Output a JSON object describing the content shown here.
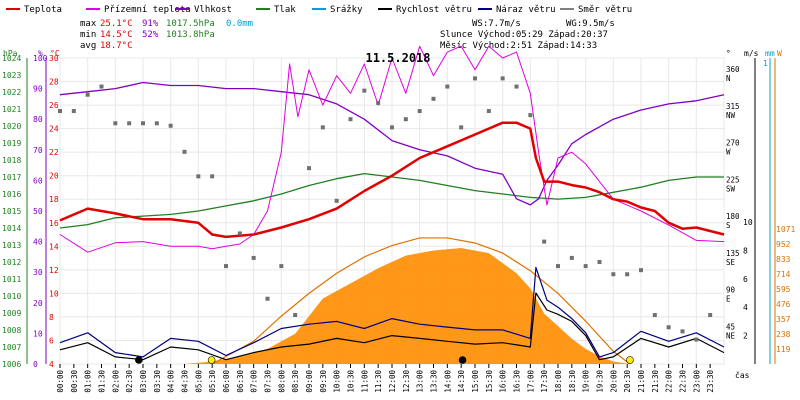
{
  "chart_data": {
    "type": "line",
    "title": "11.5.2018",
    "legend": [
      {
        "label": "Teplota",
        "color": "#e00000"
      },
      {
        "label": "Přízemní teplota",
        "color": "#e000e0"
      },
      {
        "label": "Vlhkost",
        "color": "#8000c0"
      },
      {
        "label": "Tlak",
        "color": "#208020"
      },
      {
        "label": "Srážky",
        "color": "#00a0d0"
      },
      {
        "label": "Rychlost větru",
        "color": "#000000"
      },
      {
        "label": "Náraz větru",
        "color": "#000080"
      },
      {
        "label": "Směr větru",
        "color": "#808080"
      }
    ],
    "stats": {
      "max": {
        "label": "max",
        "temp": "25.1°C",
        "hum": "91%",
        "press": "1017.5hPa",
        "rain": "0.0mm"
      },
      "min": {
        "label": "min",
        "temp": "14.5°C",
        "hum": "52%",
        "press": "1013.8hPa"
      },
      "avg": {
        "label": "avg",
        "temp": "18.7°C"
      }
    },
    "info": {
      "ws": "WS:7.7m/s",
      "wg": "WG:9.5m/s",
      "sun": "Slunce Východ:05:29  Západ:20:37",
      "moon": "Měsíc  Východ:2:51   Západ:14:33"
    },
    "axes": {
      "hpa_unit": "hPa",
      "hpa_ticks": [
        "1024",
        "1023",
        "1022",
        "1021",
        "1020",
        "1019",
        "1018",
        "1017",
        "1016",
        "1015",
        "1014",
        "1013",
        "1012",
        "1011",
        "1010",
        "1009",
        "1008",
        "1007",
        "1006"
      ],
      "pct_unit": "%",
      "pct_ticks": [
        "100",
        "90",
        "80",
        "70",
        "60",
        "50",
        "40",
        "30",
        "20",
        "10",
        "0"
      ],
      "temp_unit": "°C",
      "temp_ticks": [
        "30",
        "28",
        "26",
        "24",
        "22",
        "20",
        "18",
        "16",
        "14",
        "12",
        "10",
        "8",
        "6",
        "4"
      ],
      "deg_unit": "°",
      "dir_ticks": [
        {
          "deg": "360",
          "lbl": "N"
        },
        {
          "deg": "315",
          "lbl": "NW"
        },
        {
          "deg": "270",
          "lbl": "W"
        },
        {
          "deg": "225",
          "lbl": "SW"
        },
        {
          "deg": "180",
          "lbl": "S"
        },
        {
          "deg": "135",
          "lbl": "SE"
        },
        {
          "deg": "90",
          "lbl": "E"
        },
        {
          "deg": "45",
          "lbl": "NE"
        }
      ],
      "ms_unit": "m/s",
      "ms_ticks": [
        "10",
        "8",
        "6",
        "4",
        "2"
      ],
      "mm_unit": "mm",
      "mm_top": "1",
      "w_unit": "W",
      "w_ticks": [
        "1071",
        "952",
        "833",
        "714",
        "595",
        "476",
        "357",
        "238",
        "119"
      ],
      "time_unit": "čas",
      "x_ticks": [
        "00:00",
        "00:30",
        "01:00",
        "01:30",
        "02:00",
        "02:30",
        "03:00",
        "03:30",
        "04:00",
        "04:30",
        "05:00",
        "05:30",
        "06:00",
        "06:30",
        "07:00",
        "07:30",
        "08:00",
        "08:30",
        "09:00",
        "09:30",
        "10:00",
        "10:30",
        "11:00",
        "11:30",
        "12:00",
        "12:30",
        "13:00",
        "13:30",
        "14:00",
        "14:30",
        "15:00",
        "15:30",
        "16:00",
        "16:30",
        "17:00",
        "17:30",
        "18:00",
        "18:30",
        "19:00",
        "19:30",
        "20:00",
        "20:30",
        "21:00",
        "21:30",
        "22:00",
        "22:30",
        "23:00",
        "23:30"
      ]
    },
    "series": {
      "teplota": {
        "t": [
          0,
          1,
          2,
          3,
          4,
          5,
          5.5,
          6,
          7,
          8,
          9,
          10,
          11,
          12,
          13,
          14,
          15,
          16,
          16.5,
          17,
          17.2,
          17.5,
          18,
          18.5,
          19,
          19.5,
          20,
          20.5,
          21,
          21.5,
          22,
          22.5,
          23,
          24
        ],
        "y": [
          16.2,
          17.2,
          16.8,
          16.3,
          16.3,
          16.0,
          15.0,
          14.8,
          15.0,
          15.6,
          16.3,
          17.2,
          18.7,
          20.0,
          21.5,
          22.5,
          23.5,
          24.5,
          24.5,
          24.0,
          21.5,
          19.5,
          19.5,
          19.2,
          19.0,
          18.6,
          18.0,
          17.8,
          17.3,
          17.0,
          16.0,
          15.5,
          15.6,
          15.0
        ]
      },
      "prizemni": {
        "t": [
          0,
          1,
          2,
          3,
          4,
          5,
          5.5,
          6,
          6.5,
          7,
          7.5,
          8,
          8.3,
          8.6,
          9,
          9.5,
          10,
          10.5,
          11,
          11.5,
          12,
          12.5,
          13,
          13.5,
          14,
          14.5,
          15,
          15.5,
          16,
          16.5,
          17,
          17.3,
          17.6,
          18,
          18.5,
          19,
          20,
          21,
          22,
          23,
          24
        ],
        "y": [
          15.0,
          13.5,
          14.3,
          14.4,
          14.0,
          14.0,
          13.8,
          14.0,
          14.2,
          15.0,
          17.0,
          22.0,
          29.5,
          25.0,
          29.0,
          26.0,
          28.5,
          27.0,
          29.5,
          26.0,
          30.0,
          27.0,
          31.0,
          28.5,
          30.5,
          31.0,
          29.0,
          31.0,
          30.0,
          30.5,
          27.0,
          22.0,
          17.5,
          21.5,
          22.0,
          21.0,
          18.0,
          17.0,
          15.8,
          14.5,
          14.4
        ]
      },
      "vlhkost": {
        "t": [
          0,
          1,
          2,
          3,
          4,
          5,
          6,
          7,
          8,
          9,
          10,
          11,
          12,
          13,
          14,
          15,
          16,
          16.5,
          17,
          17.3,
          17.6,
          18,
          18.5,
          19,
          20,
          21,
          22,
          23,
          24
        ],
        "y": [
          88,
          89,
          90,
          92,
          91,
          91,
          90,
          90,
          89,
          88,
          85,
          80,
          73,
          70,
          68,
          64,
          62,
          54,
          52,
          54,
          60,
          65,
          72,
          75,
          80,
          83,
          85,
          86,
          88
        ]
      },
      "tlak": {
        "t": [
          0,
          1,
          2,
          3,
          4,
          5,
          6,
          7,
          8,
          9,
          10,
          11,
          12,
          13,
          14,
          15,
          16,
          17,
          18,
          19,
          20,
          21,
          22,
          23,
          24
        ],
        "y": [
          1014.0,
          1014.2,
          1014.6,
          1014.7,
          1014.8,
          1015.0,
          1015.3,
          1015.6,
          1016.0,
          1016.5,
          1016.9,
          1017.2,
          1017.0,
          1016.8,
          1016.5,
          1016.2,
          1016.0,
          1015.8,
          1015.7,
          1015.8,
          1016.1,
          1016.4,
          1016.8,
          1017.0,
          1017.0
        ]
      },
      "radiace": {
        "t": [
          4.5,
          5.5,
          6.5,
          7.5,
          8.5,
          9.5,
          10.5,
          11.5,
          12.5,
          13.5,
          14.5,
          15.5,
          16.5,
          17,
          17.5,
          18,
          18.5,
          19,
          19.5,
          20,
          20.6
        ],
        "y": [
          0,
          20,
          60,
          120,
          240,
          520,
          640,
          760,
          860,
          900,
          920,
          880,
          720,
          600,
          400,
          300,
          200,
          120,
          60,
          20,
          0
        ]
      },
      "slunce_teor": {
        "t": [
          5.5,
          7,
          8,
          9,
          10,
          11,
          12,
          13,
          14,
          15,
          16,
          17,
          18,
          19,
          20,
          20.6
        ],
        "y": [
          0,
          180,
          380,
          560,
          720,
          850,
          940,
          1000,
          1000,
          960,
          880,
          740,
          560,
          340,
          100,
          0
        ]
      },
      "vitr": {
        "t": [
          0,
          1,
          2,
          3,
          4,
          5,
          6,
          7,
          8,
          9,
          10,
          11,
          12,
          13,
          14,
          15,
          16,
          17,
          17.2,
          17.6,
          18,
          18.5,
          19,
          19.5,
          20,
          21,
          22,
          23,
          24
        ],
        "y": [
          1.0,
          1.5,
          0.5,
          0.3,
          1.2,
          1.0,
          0.3,
          0.8,
          1.2,
          1.4,
          1.8,
          1.5,
          2.0,
          1.8,
          1.6,
          1.4,
          1.5,
          1.2,
          5.0,
          3.8,
          3.5,
          3.0,
          2.0,
          0.3,
          0.5,
          1.8,
          1.2,
          1.8,
          0.8
        ]
      },
      "naraz": {
        "t": [
          0,
          1,
          2,
          3,
          4,
          5,
          6,
          7,
          8,
          9,
          10,
          11,
          12,
          13,
          14,
          15,
          16,
          17,
          17.2,
          17.6,
          18,
          18.5,
          19,
          19.5,
          20,
          21,
          22,
          23,
          24
        ],
        "y": [
          1.5,
          2.2,
          0.8,
          0.5,
          1.8,
          1.6,
          0.6,
          1.5,
          2.5,
          2.8,
          3.0,
          2.5,
          3.2,
          2.8,
          2.6,
          2.4,
          2.4,
          1.8,
          6.8,
          4.5,
          4.0,
          3.2,
          2.2,
          0.5,
          0.8,
          2.3,
          1.6,
          2.2,
          1.2
        ]
      },
      "smer": {
        "t": [
          0,
          0.5,
          1,
          1.5,
          2,
          2.5,
          3,
          3.5,
          4,
          4.5,
          5,
          5.5,
          6,
          6.5,
          7,
          7.5,
          8,
          8.5,
          9,
          9.5,
          10,
          10.5,
          11,
          11.5,
          12,
          12.5,
          13,
          13.5,
          14,
          14.5,
          15,
          15.5,
          16,
          16.5,
          17,
          17.5,
          18,
          18.5,
          19,
          19.5,
          20,
          20.5,
          21,
          21.5,
          22,
          22.5,
          23,
          23.5
        ],
        "y": [
          310,
          310,
          330,
          340,
          295,
          295,
          295,
          295,
          292,
          260,
          230,
          230,
          120,
          160,
          130,
          80,
          120,
          60,
          240,
          290,
          200,
          300,
          335,
          320,
          290,
          300,
          310,
          325,
          340,
          290,
          350,
          310,
          350,
          340,
          305,
          150,
          120,
          130,
          120,
          125,
          110,
          110,
          115,
          60,
          45,
          40,
          30,
          60
        ]
      }
    }
  }
}
